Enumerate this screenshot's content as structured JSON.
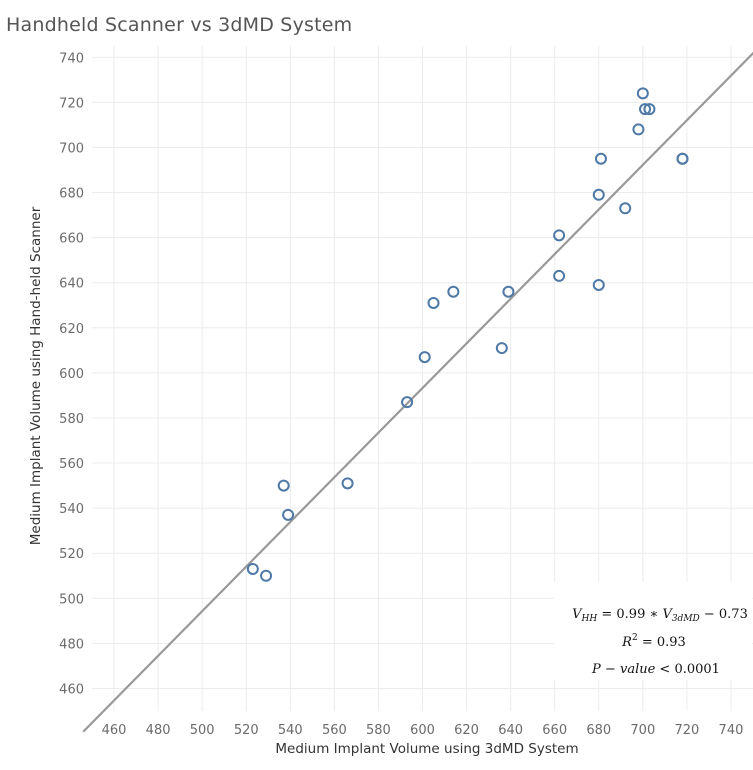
{
  "chart_data": {
    "type": "scatter",
    "title": "Handheld Scanner vs 3dMD System",
    "xlabel": "Medium Implant Volume using 3dMD System",
    "ylabel": "Medium Implant Volume using Hand-held Scanner",
    "xlim": [
      450,
      750
    ],
    "ylim": [
      450,
      745
    ],
    "x_ticks": [
      460,
      480,
      500,
      520,
      540,
      560,
      580,
      600,
      620,
      640,
      660,
      680,
      700,
      720,
      740
    ],
    "y_ticks": [
      460,
      480,
      500,
      520,
      540,
      560,
      580,
      600,
      620,
      640,
      660,
      680,
      700,
      720,
      740
    ],
    "grid": true,
    "points": [
      {
        "x": 523,
        "y": 513
      },
      {
        "x": 529,
        "y": 510
      },
      {
        "x": 537,
        "y": 550
      },
      {
        "x": 539,
        "y": 537
      },
      {
        "x": 566,
        "y": 551
      },
      {
        "x": 593,
        "y": 587
      },
      {
        "x": 601,
        "y": 607
      },
      {
        "x": 605,
        "y": 631
      },
      {
        "x": 614,
        "y": 636
      },
      {
        "x": 636,
        "y": 611
      },
      {
        "x": 639,
        "y": 636
      },
      {
        "x": 662,
        "y": 661
      },
      {
        "x": 662,
        "y": 643
      },
      {
        "x": 680,
        "y": 679
      },
      {
        "x": 680,
        "y": 639
      },
      {
        "x": 681,
        "y": 695
      },
      {
        "x": 692,
        "y": 673
      },
      {
        "x": 698,
        "y": 708
      },
      {
        "x": 700,
        "y": 724
      },
      {
        "x": 701,
        "y": 717
      },
      {
        "x": 703,
        "y": 717
      },
      {
        "x": 718,
        "y": 695
      },
      {
        "x": 718,
        "y": 695
      }
    ],
    "fit_line": {
      "slope": 0.99,
      "intercept": -0.73
    },
    "point_color": "#4e79a7",
    "line_color": "#999999",
    "annotations": [
      {
        "key": "equation",
        "text": "V_HH = 0.99 * V_3dMD − 0.73"
      },
      {
        "key": "r2",
        "text": "R² = 0.93"
      },
      {
        "key": "pvalue",
        "text": "P − value < 0.0001"
      }
    ]
  }
}
